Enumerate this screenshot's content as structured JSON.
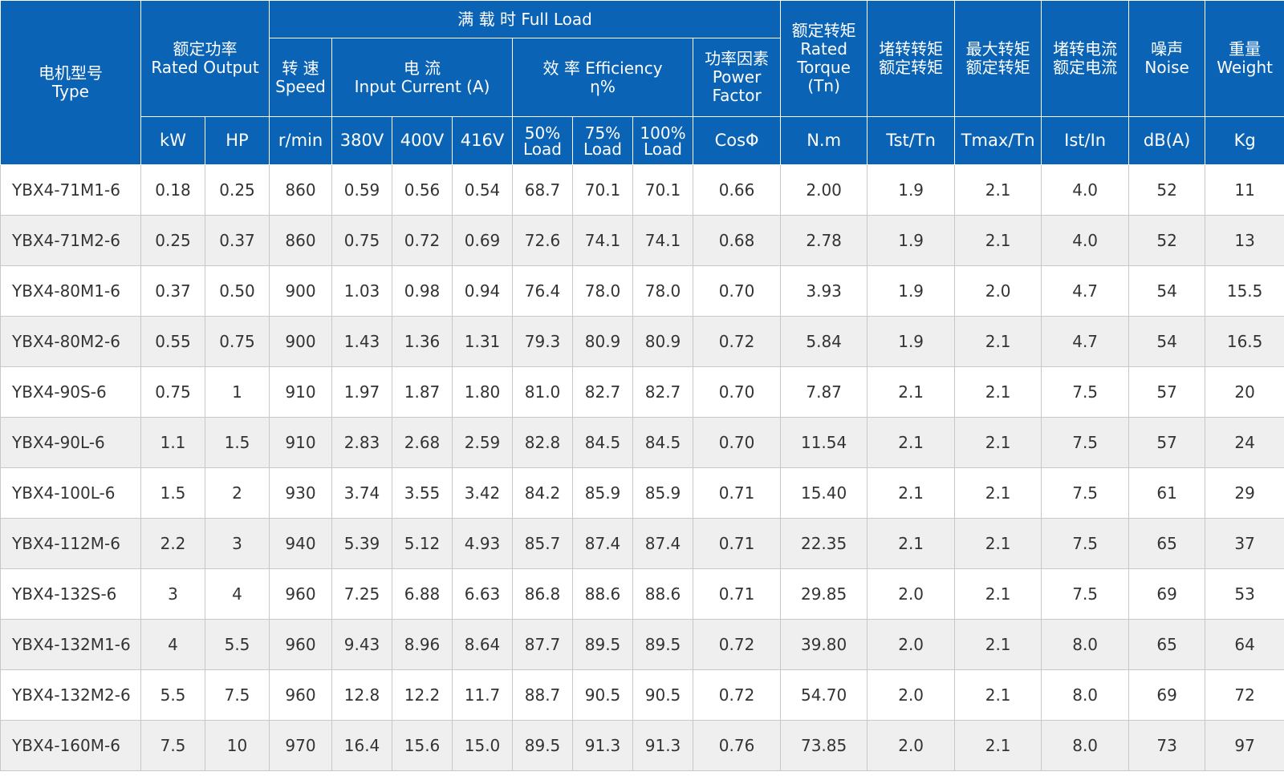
{
  "header": {
    "type_cn": "电机型号",
    "type_en": "Type",
    "rated_output_cn": "额定功率",
    "rated_output_en": "Rated Output",
    "full_load": "满 载 时   Full Load",
    "speed_cn": "转 速",
    "speed_en": "Speed",
    "current_cn": "电 流",
    "current_en": "Input Current (A)",
    "efficiency_line1": "效 率 Efficiency",
    "efficiency_line2": "η%",
    "power_factor_cn": "功率因素",
    "power_factor_en1": "Power",
    "power_factor_en2": "Factor",
    "torque_cn": "额定转矩",
    "torque_en1": "Rated",
    "torque_en2": "Torque",
    "torque_en3": "(Tn)",
    "locked_torque_1": "堵转转矩",
    "locked_torque_2": "额定转矩",
    "max_torque_1": "最大转矩",
    "max_torque_2": "额定转矩",
    "locked_current_1": "堵转电流",
    "locked_current_2": "额定电流",
    "noise_cn": "噪声",
    "noise_en": "Noise",
    "weight_cn": "重量",
    "weight_en": "Weight"
  },
  "units": {
    "kw": "kW",
    "hp": "HP",
    "speed": "r/min",
    "v380": "380V",
    "v400": "400V",
    "v416": "416V",
    "load50_a": "50%",
    "load50_b": "Load",
    "load75_a": "75%",
    "load75_b": "Load",
    "load100_a": "100%",
    "load100_b": "Load",
    "cos": "CosΦ",
    "nm": "N.m",
    "tst": "Tst/Tn",
    "tmax": "Tmax/Tn",
    "ist": "Ist/In",
    "db": "dB(A)",
    "kg": "Kg"
  },
  "rows": [
    [
      "YBX4-71M1-6",
      "0.18",
      "0.25",
      "860",
      "0.59",
      "0.56",
      "0.54",
      "68.7",
      "70.1",
      "70.1",
      "0.66",
      "2.00",
      "1.9",
      "2.1",
      "4.0",
      "52",
      "11"
    ],
    [
      "YBX4-71M2-6",
      "0.25",
      "0.37",
      "860",
      "0.75",
      "0.72",
      "0.69",
      "72.6",
      "74.1",
      "74.1",
      "0.68",
      "2.78",
      "1.9",
      "2.1",
      "4.0",
      "52",
      "13"
    ],
    [
      "YBX4-80M1-6",
      "0.37",
      "0.50",
      "900",
      "1.03",
      "0.98",
      "0.94",
      "76.4",
      "78.0",
      "78.0",
      "0.70",
      "3.93",
      "1.9",
      "2.0",
      "4.7",
      "54",
      "15.5"
    ],
    [
      "YBX4-80M2-6",
      "0.55",
      "0.75",
      "900",
      "1.43",
      "1.36",
      "1.31",
      "79.3",
      "80.9",
      "80.9",
      "0.72",
      "5.84",
      "1.9",
      "2.1",
      "4.7",
      "54",
      "16.5"
    ],
    [
      "YBX4-90S-6",
      "0.75",
      "1",
      "910",
      "1.97",
      "1.87",
      "1.80",
      "81.0",
      "82.7",
      "82.7",
      "0.70",
      "7.87",
      "2.1",
      "2.1",
      "7.5",
      "57",
      "20"
    ],
    [
      "YBX4-90L-6",
      "1.1",
      "1.5",
      "910",
      "2.83",
      "2.68",
      "2.59",
      "82.8",
      "84.5",
      "84.5",
      "0.70",
      "11.54",
      "2.1",
      "2.1",
      "7.5",
      "57",
      "24"
    ],
    [
      "YBX4-100L-6",
      "1.5",
      "2",
      "930",
      "3.74",
      "3.55",
      "3.42",
      "84.2",
      "85.9",
      "85.9",
      "0.71",
      "15.40",
      "2.1",
      "2.1",
      "7.5",
      "61",
      "29"
    ],
    [
      "YBX4-112M-6",
      "2.2",
      "3",
      "940",
      "5.39",
      "5.12",
      "4.93",
      "85.7",
      "87.4",
      "87.4",
      "0.71",
      "22.35",
      "2.1",
      "2.1",
      "7.5",
      "65",
      "37"
    ],
    [
      "YBX4-132S-6",
      "3",
      "4",
      "960",
      "7.25",
      "6.88",
      "6.63",
      "86.8",
      "88.6",
      "88.6",
      "0.71",
      "29.85",
      "2.0",
      "2.1",
      "7.5",
      "69",
      "53"
    ],
    [
      "YBX4-132M1-6",
      "4",
      "5.5",
      "960",
      "9.43",
      "8.96",
      "8.64",
      "87.7",
      "89.5",
      "89.5",
      "0.72",
      "39.80",
      "2.0",
      "2.1",
      "8.0",
      "65",
      "64"
    ],
    [
      "YBX4-132M2-6",
      "5.5",
      "7.5",
      "960",
      "12.8",
      "12.2",
      "11.7",
      "88.7",
      "90.5",
      "90.5",
      "0.72",
      "54.70",
      "2.0",
      "2.1",
      "8.0",
      "69",
      "72"
    ],
    [
      "YBX4-160M-6",
      "7.5",
      "10",
      "970",
      "16.4",
      "15.6",
      "15.0",
      "89.5",
      "91.3",
      "91.3",
      "0.76",
      "73.85",
      "2.0",
      "2.1",
      "8.0",
      "73",
      "97"
    ]
  ]
}
